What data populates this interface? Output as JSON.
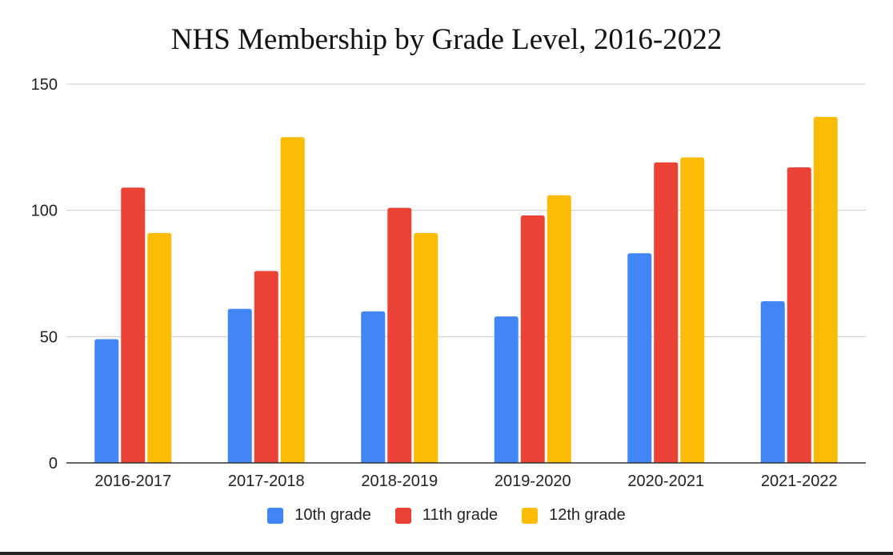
{
  "chart_data": {
    "type": "bar",
    "title": "NHS Membership by Grade Level, 2016-2022",
    "xlabel": "",
    "ylabel": "",
    "ylim": [
      0,
      150
    ],
    "yticks": [
      0,
      50,
      100,
      150
    ],
    "ytick_labels": [
      "0",
      "50",
      "100",
      "150"
    ],
    "grid": true,
    "legend_position": "bottom",
    "categories": [
      "2016-2017",
      "2017-2018",
      "2018-2019",
      "2019-2020",
      "2020-2021",
      "2021-2022"
    ],
    "series": [
      {
        "name": "10th grade",
        "color": "#4285F4",
        "values": [
          49,
          61,
          60,
          58,
          83,
          64
        ]
      },
      {
        "name": "11th grade",
        "color": "#EA4335",
        "values": [
          109,
          76,
          101,
          98,
          119,
          117
        ]
      },
      {
        "name": "12th grade",
        "color": "#FBBC04",
        "values": [
          91,
          129,
          91,
          106,
          121,
          137
        ]
      }
    ]
  }
}
